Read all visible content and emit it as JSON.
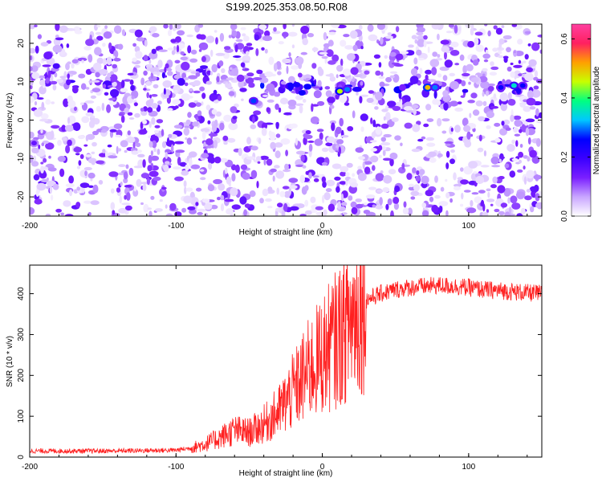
{
  "title": "S199.2025.353.08.50.R08",
  "chart_data": [
    {
      "type": "heatmap",
      "xlabel": "Height of straight line (km)",
      "ylabel": "Frequency (Hz)",
      "xlim": [
        -200,
        150
      ],
      "ylim": [
        -25,
        25
      ],
      "x_ticks": [
        -200,
        -100,
        0,
        100
      ],
      "y_ticks": [
        -20,
        -10,
        0,
        10,
        20
      ],
      "colorbar": {
        "label": "Normalized spectral amplitude",
        "range": [
          0.0,
          0.65
        ],
        "ticks": [
          0.0,
          0.2,
          0.4,
          0.6
        ],
        "tick_labels": [
          "0.0",
          "0.2",
          "0.4",
          "0.6"
        ],
        "colors": [
          "#ffffff",
          "#c9a6ff",
          "#7a1fff",
          "#3a00ff",
          "#0000ff",
          "#00c8ff",
          "#00ff80",
          "#c8ff00",
          "#ffa000",
          "#ff2060",
          "#ff40a0"
        ]
      },
      "features": {
        "band_frequency_hz": 8.5,
        "band_start_km": -50,
        "peaks": [
          {
            "x": -47,
            "y": 5,
            "value": 0.28
          },
          {
            "x": 12,
            "y": 7.5,
            "value": 0.45
          },
          {
            "x": 17,
            "y": 8,
            "value": 0.3
          },
          {
            "x": 72,
            "y": 8.5,
            "value": 0.5
          },
          {
            "x": 77,
            "y": 8.5,
            "value": 0.3
          },
          {
            "x": 122,
            "y": 8.5,
            "value": 0.25
          },
          {
            "x": 131,
            "y": 9,
            "value": 0.35
          },
          {
            "x": 137,
            "y": 9,
            "value": 0.25
          },
          {
            "x": -197,
            "y": -6,
            "value": 0.15
          }
        ]
      },
      "grid": false
    },
    {
      "type": "line",
      "xlabel": "Height of straight line (km)",
      "ylabel": "SNR (10 * v/v)",
      "xlim": [
        -200,
        150
      ],
      "ylim": [
        0,
        470
      ],
      "x_ticks": [
        -200,
        -100,
        0,
        100
      ],
      "y_ticks": [
        0,
        100,
        200,
        300,
        400
      ],
      "color": "#ff2020",
      "series": [
        {
          "x": [
            -200,
            -150,
            -100,
            -90,
            -80,
            -70,
            -60,
            -50,
            -40,
            -30,
            -20,
            -10,
            0,
            10,
            20,
            30,
            40,
            50,
            60,
            70,
            80,
            90,
            100,
            110,
            120,
            130,
            140,
            150
          ],
          "y": [
            15,
            15,
            17,
            22,
            32,
            48,
            65,
            60,
            80,
            110,
            160,
            210,
            250,
            290,
            340,
            385,
            400,
            410,
            415,
            418,
            420,
            418,
            415,
            410,
            408,
            405,
            402,
            400
          ]
        }
      ],
      "grid": false
    }
  ]
}
